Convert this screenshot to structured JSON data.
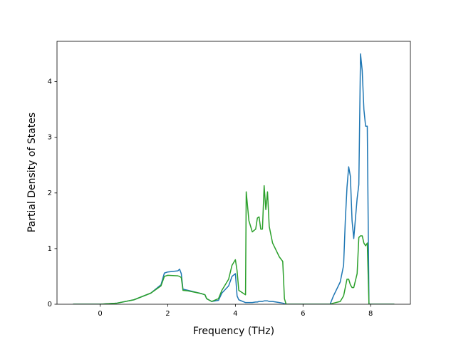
{
  "chart_data": {
    "type": "line",
    "xlabel": "Frequency (THz)",
    "ylabel": "Partial Density of States",
    "x": [
      -0.8,
      0,
      0.5,
      1.0,
      1.5,
      1.8,
      1.9,
      2.0,
      2.3,
      2.35,
      2.4,
      2.45,
      2.6,
      3.0,
      3.1,
      3.15,
      3.3,
      3.5,
      3.6,
      3.8,
      3.9,
      4.0,
      4.05,
      4.1,
      4.3,
      4.32,
      4.4,
      4.5,
      4.6,
      4.65,
      4.7,
      4.75,
      4.8,
      4.85,
      4.9,
      4.95,
      5.0,
      5.1,
      5.3,
      5.4,
      5.45,
      5.5,
      6.8,
      6.9,
      7.1,
      7.2,
      7.25,
      7.3,
      7.35,
      7.4,
      7.45,
      7.5,
      7.6,
      7.65,
      7.7,
      7.75,
      7.8,
      7.85,
      7.9,
      7.95,
      8.7
    ],
    "series": [
      {
        "color": "#1f77b4",
        "values": [
          0,
          0,
          0.02,
          0.08,
          0.2,
          0.35,
          0.56,
          0.58,
          0.6,
          0.63,
          0.55,
          0.27,
          0.25,
          0.19,
          0.17,
          0.1,
          0.05,
          0.07,
          0.2,
          0.33,
          0.5,
          0.55,
          0.15,
          0.08,
          0.03,
          0.03,
          0.03,
          0.03,
          0.04,
          0.04,
          0.05,
          0.05,
          0.05,
          0.06,
          0.06,
          0.06,
          0.05,
          0.05,
          0.03,
          0.02,
          0.01,
          0,
          0,
          0.15,
          0.4,
          0.7,
          1.5,
          2.1,
          2.47,
          2.3,
          1.5,
          1.18,
          1.9,
          2.15,
          4.5,
          4.2,
          3.5,
          3.2,
          3.2,
          0,
          0
        ]
      },
      {
        "color": "#2ca02c",
        "values": [
          0,
          0,
          0.02,
          0.08,
          0.2,
          0.33,
          0.5,
          0.52,
          0.51,
          0.5,
          0.48,
          0.25,
          0.24,
          0.19,
          0.17,
          0.1,
          0.05,
          0.1,
          0.25,
          0.45,
          0.7,
          0.8,
          0.6,
          0.25,
          0.17,
          2.02,
          1.5,
          1.3,
          1.35,
          1.55,
          1.57,
          1.35,
          1.35,
          2.13,
          1.7,
          2.02,
          1.4,
          1.1,
          0.85,
          0.77,
          0.1,
          0,
          0,
          0.02,
          0.05,
          0.15,
          0.3,
          0.45,
          0.45,
          0.35,
          0.3,
          0.3,
          0.55,
          1.2,
          1.23,
          1.23,
          1.1,
          1.05,
          1.1,
          0,
          0
        ]
      }
    ],
    "xlim": [
      -1.275,
      9.175
    ],
    "xticks": [
      0,
      2,
      4,
      6,
      8
    ],
    "ylim": [
      0,
      4.725
    ],
    "yticks": [
      0,
      1,
      2,
      3,
      4
    ]
  }
}
